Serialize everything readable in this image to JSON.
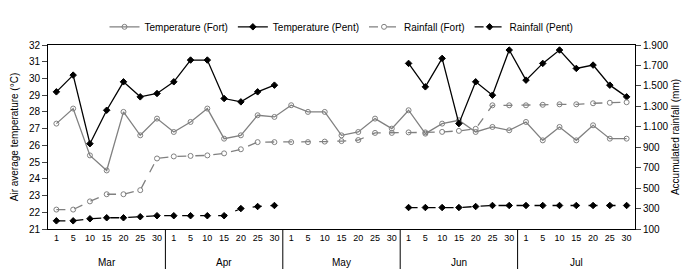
{
  "chart_data": {
    "type": "line",
    "categories": [
      "1",
      "5",
      "10",
      "15",
      "20",
      "25",
      "30",
      "1",
      "5",
      "10",
      "15",
      "20",
      "25",
      "30",
      "1",
      "5",
      "10",
      "15",
      "20",
      "25",
      "30",
      "1",
      "5",
      "10",
      "15",
      "20",
      "25",
      "30",
      "1",
      "5",
      "10",
      "15",
      "20",
      "25",
      "30"
    ],
    "annotations": [
      {
        "text": "Mar",
        "x": 3
      },
      {
        "text": "Apr",
        "x": 10
      },
      {
        "text": "May",
        "x": 17
      },
      {
        "text": "Jun",
        "x": 24
      },
      {
        "text": "Jul",
        "x": 31
      }
    ],
    "y_label": "Air average temperature (°C)",
    "y2_label": "Accumulated rainfall (mm)",
    "ylim": [
      21,
      32
    ],
    "yticks": [
      21,
      22,
      23,
      24,
      25,
      26,
      27,
      28,
      29,
      30,
      31,
      32
    ],
    "y2lim": [
      100,
      1900
    ],
    "y2ticks": [
      100,
      300,
      500,
      700,
      900,
      {
        "value": 1100,
        "label": "1.100"
      },
      {
        "value": 1300,
        "label": "1.300"
      },
      {
        "value": 1500,
        "label": "1.500"
      },
      {
        "value": 1700,
        "label": "1.700"
      },
      {
        "value": 1900,
        "label": "1.900"
      }
    ],
    "grid": false,
    "legend": "top",
    "series": [
      {
        "name": "Temperature (Fort)",
        "color": "#808080",
        "marker": "circle-open",
        "line_style": "solid",
        "values": [
          27.3,
          28.2,
          25.4,
          24.5,
          28.0,
          26.6,
          27.6,
          26.8,
          27.4,
          28.2,
          26.4,
          26.6,
          27.8,
          27.7,
          28.4,
          28.0,
          28.0,
          26.6,
          26.8,
          27.6,
          27.0,
          28.1,
          26.7,
          27.3,
          27.5,
          26.8,
          27.1,
          26.9,
          27.4,
          26.3,
          27.1,
          26.3,
          27.2,
          26.4,
          26.4
        ]
      },
      {
        "name": "Temperature (Pent)",
        "color": "#000000",
        "marker": "diamond",
        "line_style": "solid",
        "values": [
          29.2,
          30.2,
          26.1,
          28.1,
          29.8,
          28.9,
          29.1,
          29.8,
          31.1,
          31.1,
          28.8,
          28.6,
          29.2,
          29.6,
          null,
          null,
          null,
          null,
          null,
          null,
          null,
          30.9,
          29.5,
          31.2,
          27.3,
          29.8,
          29.0,
          31.7,
          29.9,
          30.9,
          31.7,
          30.6,
          30.8,
          29.6,
          28.9
        ]
      },
      {
        "name": "Rainfall (Fort)",
        "color": "#808080",
        "marker": "circle-open",
        "line_style": "dash",
        "axis": "y2",
        "values": [
          290,
          290,
          370,
          440,
          440,
          480,
          790,
          810,
          815,
          820,
          840,
          880,
          950,
          950,
          950,
          950,
          955,
          960,
          970,
          1040,
          1040,
          1045,
          1045,
          1050,
          1060,
          1080,
          1310,
          1310,
          1310,
          1315,
          1320,
          1320,
          1330,
          1335,
          1340
        ]
      },
      {
        "name": "Rainfall (Pent)",
        "color": "#000000",
        "marker": "diamond",
        "line_style": "dash",
        "axis": "y2",
        "values": [
          180,
          180,
          200,
          210,
          210,
          220,
          230,
          230,
          230,
          230,
          230,
          300,
          320,
          330,
          null,
          null,
          null,
          null,
          null,
          null,
          null,
          310,
          310,
          310,
          310,
          320,
          330,
          330,
          330,
          330,
          330,
          330,
          330,
          330,
          330
        ]
      }
    ]
  }
}
